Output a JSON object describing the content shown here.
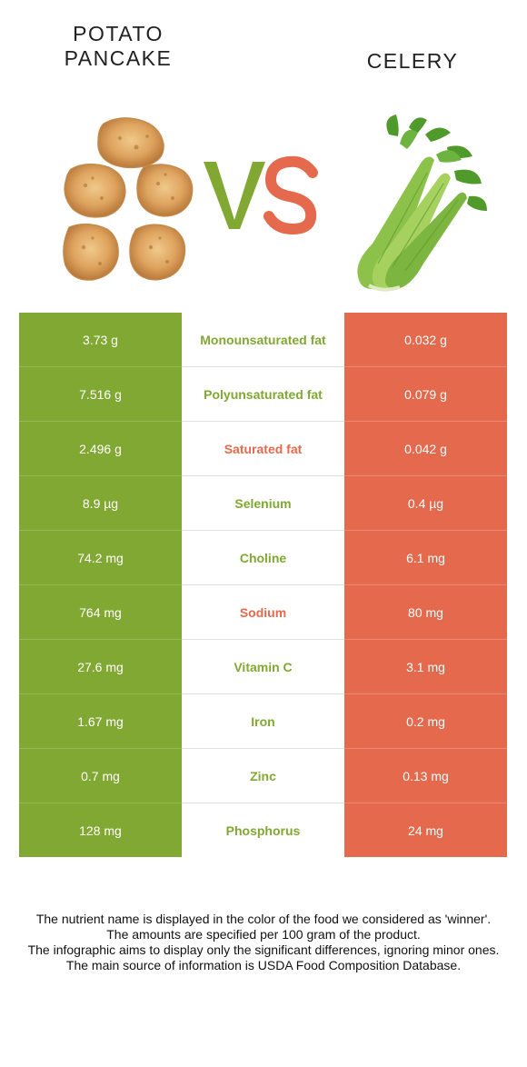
{
  "header": {
    "left_food": "POTATO PANCAKE",
    "left_food_lines": [
      "POTATO",
      "PANCAKE"
    ],
    "right_food": "CELERY",
    "vs_label": "VS"
  },
  "colors": {
    "left_winner": "#80a832",
    "right_winner": "#e4694d",
    "vs_v": "#80a832",
    "vs_s": "#e4694d"
  },
  "rows": [
    {
      "left": "3.73 g",
      "nutrient": "Monounsaturated fat",
      "right": "0.032 g",
      "winner": "left"
    },
    {
      "left": "7.516 g",
      "nutrient": "Polyunsaturated fat",
      "right": "0.079 g",
      "winner": "left"
    },
    {
      "left": "2.496 g",
      "nutrient": "Saturated fat",
      "right": "0.042 g",
      "winner": "right"
    },
    {
      "left": "8.9 µg",
      "nutrient": "Selenium",
      "right": "0.4 µg",
      "winner": "left"
    },
    {
      "left": "74.2 mg",
      "nutrient": "Choline",
      "right": "6.1 mg",
      "winner": "left"
    },
    {
      "left": "764 mg",
      "nutrient": "Sodium",
      "right": "80 mg",
      "winner": "right"
    },
    {
      "left": "27.6 mg",
      "nutrient": "Vitamin C",
      "right": "3.1 mg",
      "winner": "left"
    },
    {
      "left": "1.67 mg",
      "nutrient": "Iron",
      "right": "0.2 mg",
      "winner": "left"
    },
    {
      "left": "0.7 mg",
      "nutrient": "Zinc",
      "right": "0.13 mg",
      "winner": "left"
    },
    {
      "left": "128 mg",
      "nutrient": "Phosphorus",
      "right": "24 mg",
      "winner": "left"
    }
  ],
  "footer": {
    "line1": "The nutrient name is displayed in the color of the food we considered as 'winner'.",
    "line2": "The amounts are specified per 100 gram of the product.",
    "line3": "The infographic aims to display only the significant differences, ignoring minor ones.",
    "line4": "The main source of information is USDA Food Composition Database."
  },
  "icons": {
    "left_image": "potato-pancakes-icon",
    "right_image": "celery-stalk-icon"
  }
}
